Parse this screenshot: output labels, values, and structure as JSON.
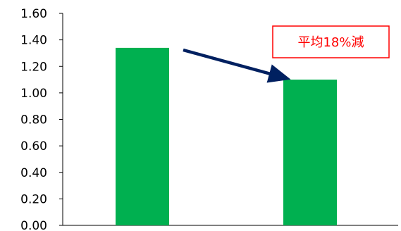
{
  "chart_data": {
    "type": "bar",
    "title": "",
    "xlabel": "",
    "ylabel": "",
    "categories": [
      "",
      ""
    ],
    "values": [
      1.34,
      1.1
    ],
    "ylim": [
      0,
      1.6
    ],
    "yticks": [
      "0.00",
      "0.20",
      "0.40",
      "0.60",
      "0.80",
      "1.00",
      "1.20",
      "1.40",
      "1.60"
    ],
    "grid": false,
    "legend": "none",
    "bar_color": "#00b050",
    "annotation": {
      "text": "平均18%減",
      "text_color": "#ff0000",
      "border_color": "#ff0000",
      "arrow_color": "#002060"
    }
  }
}
